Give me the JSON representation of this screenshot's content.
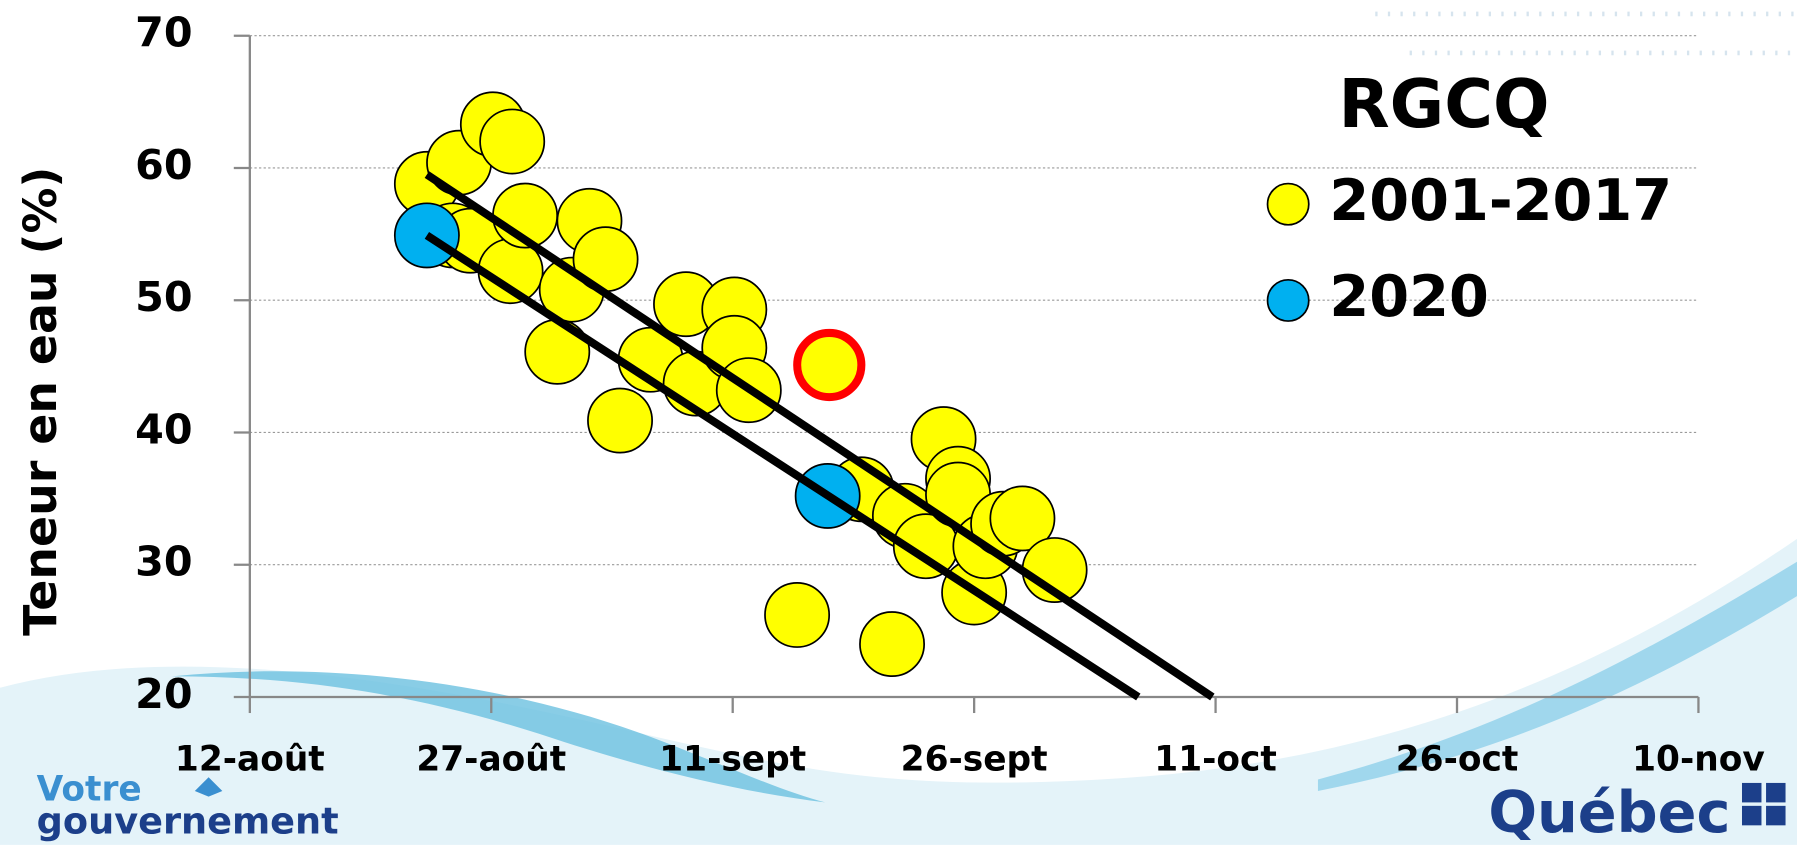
{
  "chart_data": {
    "type": "scatter",
    "ylabel": "Teneur en eau (%)",
    "legend_title": "RGCQ",
    "ylim": [
      20,
      70
    ],
    "yticks": [
      20,
      30,
      40,
      50,
      60,
      70
    ],
    "xlim": [
      224,
      314
    ],
    "xticks": [
      {
        "value": 224,
        "label": "12-août"
      },
      {
        "value": 239,
        "label": "27-août"
      },
      {
        "value": 254,
        "label": "11-sept"
      },
      {
        "value": 269,
        "label": "26-sept"
      },
      {
        "value": 284,
        "label": "11-oct"
      },
      {
        "value": 299,
        "label": "26-oct"
      },
      {
        "value": 314,
        "label": "10-nov"
      }
    ],
    "grid": true,
    "series": [
      {
        "name": "2001-2017",
        "color": "#ffff00",
        "x": [
          235.0,
          237.0,
          239.1,
          240.3,
          236.6,
          237.7,
          240.2,
          241.1,
          244.0,
          243.1,
          245.1,
          246.1,
          247.0,
          248.9,
          251.1,
          251.7,
          254.1,
          254.1,
          255.0,
          258.0,
          262.0,
          263.9,
          264.7,
          266.0,
          267.1,
          268.0,
          268.0,
          269.0,
          269.7,
          270.8,
          272.0,
          274.0
        ],
        "values": [
          58.8,
          60.4,
          63.3,
          62.0,
          54.9,
          54.5,
          52.2,
          56.4,
          50.8,
          46.1,
          56.0,
          53.1,
          40.9,
          45.5,
          49.7,
          43.7,
          49.3,
          46.4,
          43.2,
          26.2,
          35.7,
          24.0,
          33.7,
          31.4,
          39.5,
          36.5,
          35.3,
          27.9,
          31.4,
          33.1,
          33.5,
          29.6
        ]
      },
      {
        "name": "2020",
        "color": "#00b0f0",
        "x": [
          235.0,
          259.9
        ],
        "values": [
          54.9,
          35.2
        ]
      }
    ],
    "trend_lines": [
      {
        "color": "#000000",
        "x": [
          235.0,
          283.8
        ],
        "values": [
          59.5,
          20
        ]
      },
      {
        "color": "#000000",
        "x": [
          235.0,
          279.2
        ],
        "values": [
          54.9,
          20
        ]
      }
    ],
    "highlight": {
      "color": "#ff0000",
      "x": 260.0,
      "y": 45.1
    }
  },
  "branding": {
    "left_top": "Votre",
    "left_bottom": "gouvernement",
    "right": "Québec"
  }
}
